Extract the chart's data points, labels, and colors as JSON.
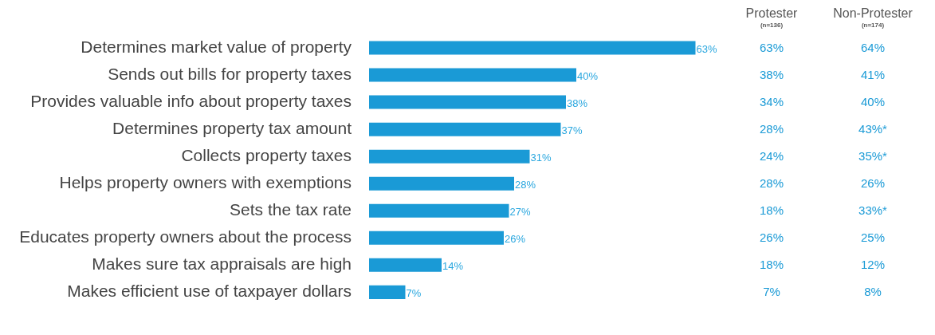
{
  "chart_data": {
    "type": "bar",
    "orientation": "horizontal",
    "categories": [
      "Determines market value of property",
      "Sends out bills for property taxes",
      "Provides valuable info about property taxes",
      "Determines property tax amount",
      "Collects property taxes",
      "Helps property owners with exemptions",
      "Sets the tax rate",
      "Educates property owners about the process",
      "Makes sure tax appraisals are high",
      "Makes efficient use of taxpayer dollars"
    ],
    "values": [
      63,
      40,
      38,
      37,
      31,
      28,
      27,
      26,
      14,
      7
    ],
    "value_labels": [
      "63%",
      "40%",
      "38%",
      "37%",
      "31%",
      "28%",
      "27%",
      "26%",
      "14%",
      "7%"
    ],
    "color": "#1a9ad6",
    "legend": false,
    "tick_labels": "y",
    "annotations": [
      "Protester",
      "(n=136)",
      "Non-Protester",
      "(n=174)",
      "63%",
      "64%",
      "38%",
      "41%",
      "34%",
      "40%",
      "28%",
      "43%*",
      "24%",
      "35%*",
      "28%",
      "26%",
      "18%",
      "33%*",
      "26%",
      "25%",
      "18%",
      "12%",
      "7%",
      "8%"
    ]
  }
}
